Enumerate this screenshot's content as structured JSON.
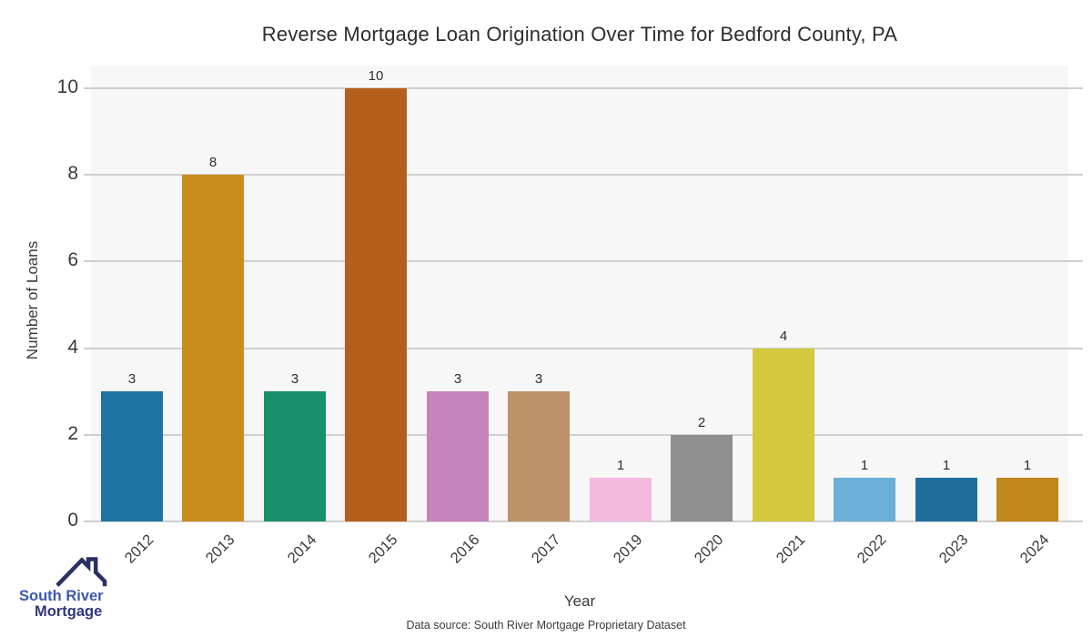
{
  "chart_data": {
    "type": "bar",
    "title": "Reverse Mortgage Loan Origination Over Time for Bedford County, PA",
    "xlabel": "Year",
    "ylabel": "Number of Loans",
    "categories": [
      "2012",
      "2013",
      "2014",
      "2015",
      "2016",
      "2017",
      "2019",
      "2020",
      "2021",
      "2022",
      "2023",
      "2024"
    ],
    "values": [
      3,
      8,
      3,
      10,
      3,
      3,
      1,
      2,
      4,
      1,
      1,
      1
    ],
    "bar_colors": [
      "#1e73a1",
      "#c98d1f",
      "#18906a",
      "#b65f1d",
      "#c584b9",
      "#bd9268",
      "#f4bade",
      "#8f8f8f",
      "#d3c83e",
      "#6bafd6",
      "#1e6f9c",
      "#c0871d"
    ],
    "yticks": [
      0,
      2,
      4,
      6,
      8,
      10
    ],
    "ylim": [
      0,
      10.5
    ],
    "grid": "horizontal",
    "legend_position": "none",
    "plot_background": "#f7f7f7",
    "gridline_color": "#cfcfcf",
    "value_labels_shown": true
  },
  "logo": {
    "line1": "South River",
    "line2": "Mortgage",
    "roof_color": "#2a3162",
    "line1_color": "#3d59ad",
    "line2_color": "#31377f"
  },
  "footer": {
    "text": "Data source: South River Mortgage Proprietary Dataset"
  }
}
